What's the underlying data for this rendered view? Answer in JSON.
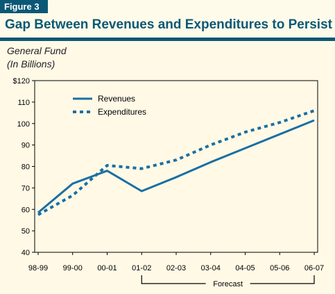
{
  "figure": {
    "label": "Figure 3",
    "title": "Gap Between Revenues and Expenditures to Persist"
  },
  "colors": {
    "brand": "#0b5876",
    "line": "#1a6fa3",
    "background": "#fff9e6"
  },
  "chart_data": {
    "type": "line",
    "ylabel_line1": "General Fund",
    "ylabel_line2": "(In Billions)",
    "categories": [
      "98-99",
      "99-00",
      "00-01",
      "01-02",
      "02-03",
      "03-04",
      "04-05",
      "05-06",
      "06-07"
    ],
    "ylim": [
      40,
      120
    ],
    "yticks": [
      40,
      50,
      60,
      70,
      80,
      90,
      100,
      110,
      120
    ],
    "ytick_labels": [
      "40",
      "50",
      "60",
      "70",
      "80",
      "90",
      "100",
      "110",
      "$120"
    ],
    "series": [
      {
        "name": "Revenues",
        "style": "solid",
        "values": [
          58.5,
          72,
          78,
          68.5,
          75,
          82,
          88.5,
          95,
          101.5
        ]
      },
      {
        "name": "Expenditures",
        "style": "dotted",
        "values": [
          57.5,
          66.5,
          80.5,
          79,
          83,
          90,
          96,
          100.5,
          106
        ]
      }
    ],
    "annotation": {
      "text": "Forecast",
      "from_category": "01-02",
      "to_category": "06-07"
    },
    "grid": false,
    "legend_position": "top-left"
  }
}
